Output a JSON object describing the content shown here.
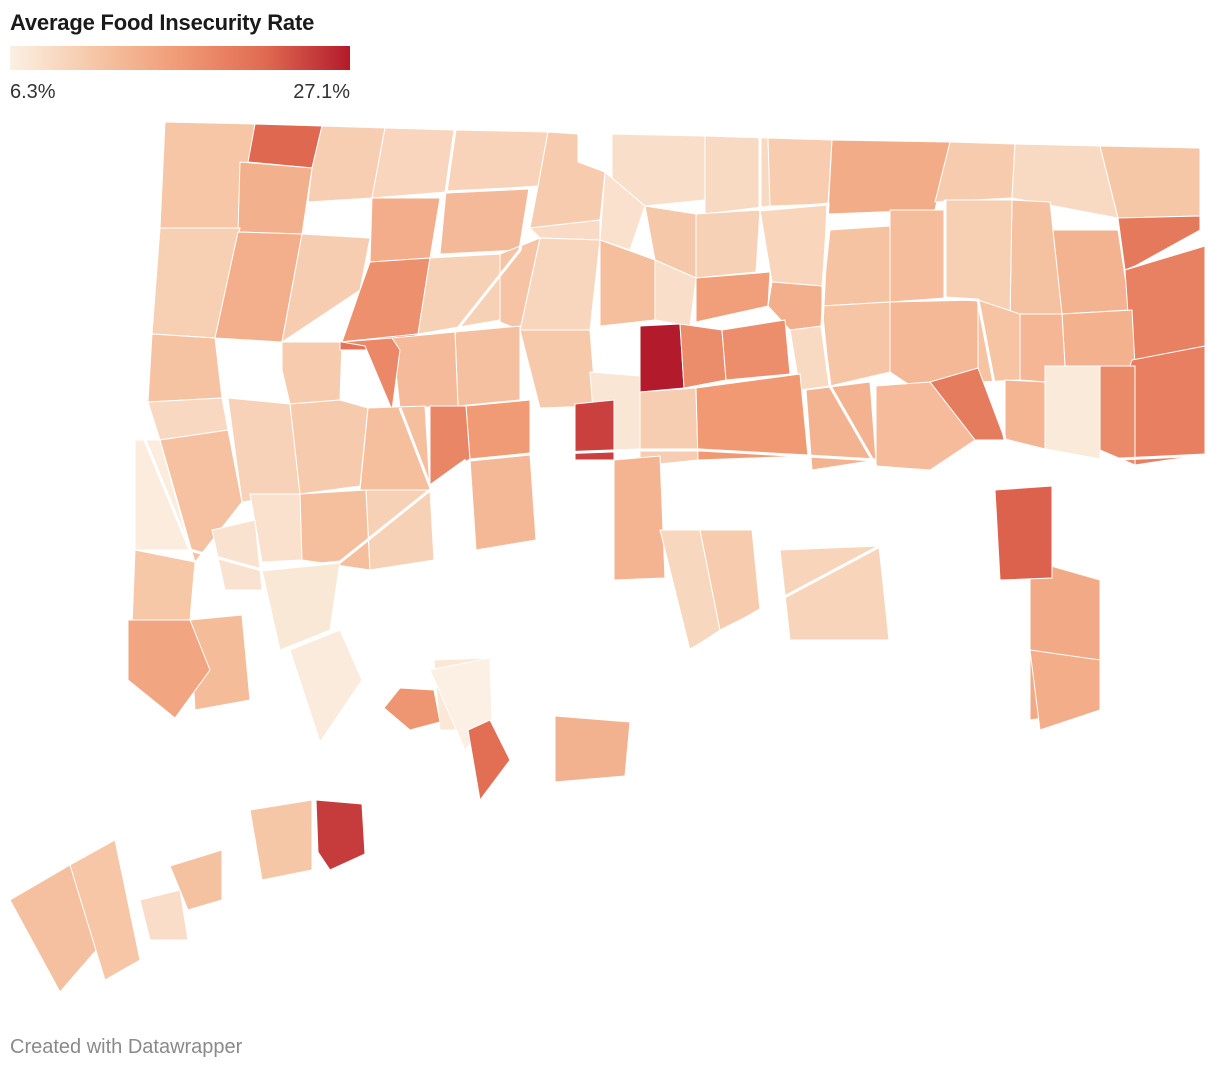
{
  "title": "Average Food Insecurity Rate",
  "legend": {
    "min_label": "6.3%",
    "max_label": "27.1%",
    "min_value": 6.3,
    "max_value": 27.1,
    "colors": [
      "#fbf0e3",
      "#f6c6a6",
      "#f09a74",
      "#e06a51",
      "#b31a2c"
    ]
  },
  "footer": "Created with Datawrapper",
  "map_data": {
    "type": "choropleth",
    "region": "Connecticut towns",
    "value_unit": "%",
    "towns": [
      {
        "id": "t1",
        "value": 11.5
      },
      {
        "id": "t2",
        "value": 22.0
      },
      {
        "id": "t3",
        "value": 10.5
      },
      {
        "id": "t4",
        "value": 9.6
      },
      {
        "id": "t5",
        "value": 9.9
      },
      {
        "id": "t6",
        "value": 10.8
      },
      {
        "id": "t7",
        "value": 8.4
      },
      {
        "id": "t8",
        "value": 9.1
      },
      {
        "id": "t9",
        "value": 10.7
      },
      {
        "id": "t10",
        "value": 14.6
      },
      {
        "id": "t11",
        "value": 10.9
      },
      {
        "id": "t12",
        "value": 9.2
      },
      {
        "id": "t13",
        "value": 11.4
      },
      {
        "id": "t14",
        "value": 14.1
      },
      {
        "id": "t15",
        "value": 10.3
      },
      {
        "id": "t16",
        "value": 14.2
      },
      {
        "id": "t17",
        "value": 14.4
      },
      {
        "id": "t18",
        "value": 13.0
      },
      {
        "id": "t19",
        "value": 10.6
      },
      {
        "id": "t20",
        "value": 8.9
      },
      {
        "id": "t21",
        "value": 17.8
      },
      {
        "id": "t22",
        "value": 10.2
      },
      {
        "id": "t23",
        "value": 20.3
      },
      {
        "id": "t24",
        "value": 13.7
      },
      {
        "id": "t25",
        "value": 12.0
      },
      {
        "id": "t26",
        "value": 10.4
      },
      {
        "id": "t27",
        "value": 12.6
      },
      {
        "id": "t28",
        "value": 11.9
      },
      {
        "id": "t29",
        "value": 19.4
      },
      {
        "id": "t30",
        "value": 9.7
      },
      {
        "id": "t31",
        "value": 10.1
      },
      {
        "id": "t32",
        "value": 8.1
      },
      {
        "id": "t33",
        "value": 11.2
      },
      {
        "id": "t34",
        "value": 9.5
      },
      {
        "id": "t35",
        "value": 12.5
      },
      {
        "id": "t36",
        "value": 11.7
      },
      {
        "id": "t37",
        "value": 8.5
      },
      {
        "id": "t38",
        "value": 11.9
      },
      {
        "id": "t39",
        "value": 16.1
      },
      {
        "id": "t40",
        "value": 10.8
      },
      {
        "id": "t41",
        "value": 14.3
      },
      {
        "id": "t42",
        "value": 27.1
      },
      {
        "id": "t43",
        "value": 18.2
      },
      {
        "id": "t44",
        "value": 18.0
      },
      {
        "id": "t45",
        "value": 9.0
      },
      {
        "id": "t46",
        "value": 11.6
      },
      {
        "id": "t47",
        "value": 13.2
      },
      {
        "id": "t48",
        "value": 11.8
      },
      {
        "id": "t49",
        "value": 14.0
      },
      {
        "id": "t50",
        "value": 13.4
      },
      {
        "id": "t51",
        "value": 20.8
      },
      {
        "id": "t52",
        "value": 19.6
      },
      {
        "id": "t53",
        "value": 12.2
      },
      {
        "id": "t54",
        "value": 11.1
      },
      {
        "id": "t55",
        "value": 12.9
      },
      {
        "id": "t56",
        "value": 16.6
      },
      {
        "id": "t57",
        "value": 18.6
      },
      {
        "id": "t58",
        "value": 7.6
      },
      {
        "id": "t59",
        "value": 6.8
      },
      {
        "id": "t60",
        "value": 9.3
      },
      {
        "id": "t61",
        "value": 12.1
      },
      {
        "id": "t62",
        "value": 10.0
      },
      {
        "id": "t63",
        "value": 8.2
      },
      {
        "id": "t64",
        "value": 11.0
      },
      {
        "id": "t65",
        "value": 24.6
      },
      {
        "id": "t66",
        "value": 12.4
      },
      {
        "id": "t67",
        "value": 10.6
      },
      {
        "id": "t68",
        "value": 16.8
      },
      {
        "id": "t69",
        "value": 18.9
      },
      {
        "id": "t70",
        "value": 13.8
      },
      {
        "id": "t71",
        "value": 19.9
      },
      {
        "id": "t72",
        "value": 12.8
      },
      {
        "id": "t73",
        "value": 13.5
      },
      {
        "id": "t74",
        "value": 18.4
      },
      {
        "id": "t75",
        "value": 7.1
      },
      {
        "id": "t76",
        "value": 11.3
      },
      {
        "id": "t77",
        "value": 12.3
      },
      {
        "id": "t78",
        "value": 7.9
      },
      {
        "id": "t79",
        "value": 10.2
      },
      {
        "id": "t80",
        "value": 13.1
      },
      {
        "id": "t81",
        "value": 7.3
      },
      {
        "id": "t82",
        "value": 6.9
      },
      {
        "id": "t83",
        "value": 7.4
      },
      {
        "id": "t84",
        "value": 13.6
      },
      {
        "id": "t85",
        "value": 9.4
      },
      {
        "id": "t86",
        "value": 10.9
      },
      {
        "id": "t87",
        "value": 9.8
      },
      {
        "id": "t88",
        "value": 14.8
      },
      {
        "id": "t89",
        "value": 22.4
      },
      {
        "id": "t90",
        "value": 6.3
      },
      {
        "id": "t91",
        "value": 12.7
      },
      {
        "id": "t92",
        "value": 13.9
      },
      {
        "id": "t93",
        "value": 24.9
      },
      {
        "id": "t94",
        "value": 11.4
      },
      {
        "id": "t95",
        "value": 17.2
      },
      {
        "id": "t96",
        "value": 15.4
      },
      {
        "id": "t97",
        "value": 12.2
      },
      {
        "id": "t98",
        "value": 8.6
      },
      {
        "id": "t99",
        "value": 11.5
      },
      {
        "id": "t100",
        "value": 12.0
      },
      {
        "id": "t101",
        "value": 21.4
      },
      {
        "id": "t102",
        "value": 14.5
      }
    ]
  }
}
